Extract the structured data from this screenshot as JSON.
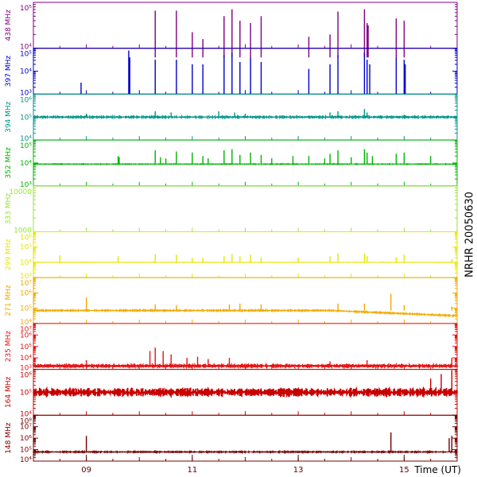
{
  "station": "NRHR 20050630",
  "time_axis": {
    "label": "Time (UT)",
    "ticks": [
      "09",
      "11",
      "13",
      "15"
    ],
    "range": [
      8.0,
      16.0
    ]
  },
  "chart_data": [
    {
      "type": "line",
      "series": [
        {
          "name": "438 MHz"
        }
      ],
      "color": "#7f007f",
      "ytick_labels": [
        "10⁵",
        "10⁴"
      ],
      "yexp": [
        5,
        4
      ],
      "ylog": true,
      "baseline_exp": 3.8,
      "noise": 0,
      "spikes": [
        [
          10.3,
          4.82
        ],
        [
          10.7,
          4.82
        ],
        [
          11.0,
          4.35
        ],
        [
          11.2,
          4.2
        ],
        [
          11.6,
          4.7
        ],
        [
          11.75,
          4.85
        ],
        [
          11.9,
          4.6
        ],
        [
          12.1,
          4.55
        ],
        [
          12.3,
          4.7
        ],
        [
          13.2,
          4.25
        ],
        [
          13.6,
          4.3
        ],
        [
          13.75,
          4.8
        ],
        [
          14.25,
          4.85
        ],
        [
          14.3,
          4.55
        ],
        [
          14.32,
          4.5
        ],
        [
          14.85,
          4.65
        ],
        [
          15.0,
          4.6
        ]
      ]
    },
    {
      "type": "line",
      "series": [
        {
          "name": "397 MHz"
        }
      ],
      "color": "#0000c8",
      "ytick_labels": [
        "10⁵",
        "10⁴",
        "10³"
      ],
      "yexp": [
        5,
        4,
        3
      ],
      "ylog": true,
      "baseline_exp": 3.0,
      "noise": 0,
      "spikes": [
        [
          8.9,
          3.5
        ],
        [
          9.8,
          4.9
        ],
        [
          9.82,
          4.6
        ],
        [
          10.3,
          4.5
        ],
        [
          10.7,
          4.5
        ],
        [
          11.0,
          4.3
        ],
        [
          11.2,
          4.3
        ],
        [
          11.6,
          4.7
        ],
        [
          11.75,
          4.8
        ],
        [
          11.9,
          4.4
        ],
        [
          12.1,
          4.6
        ],
        [
          12.3,
          4.4
        ],
        [
          13.2,
          4.1
        ],
        [
          13.6,
          4.3
        ],
        [
          13.75,
          4.7
        ],
        [
          14.25,
          4.8
        ],
        [
          14.3,
          4.5
        ],
        [
          14.35,
          4.3
        ],
        [
          14.85,
          4.6
        ],
        [
          15.0,
          4.5
        ],
        [
          15.02,
          4.3
        ]
      ]
    },
    {
      "type": "line",
      "series": [
        {
          "name": "394 MHz"
        }
      ],
      "color": "#009688",
      "ytick_labels": [
        "10⁶",
        "10⁵",
        "10⁴"
      ],
      "yexp": [
        6,
        5,
        4
      ],
      "ylog": true,
      "baseline_exp": 5.0,
      "noise": 0.06,
      "spikes": [
        [
          9.0,
          5.15
        ],
        [
          10.3,
          5.25
        ],
        [
          10.6,
          5.2
        ],
        [
          11.5,
          5.25
        ],
        [
          11.8,
          5.2
        ],
        [
          12.0,
          5.15
        ],
        [
          13.6,
          5.2
        ],
        [
          13.75,
          5.25
        ],
        [
          14.25,
          5.35
        ],
        [
          14.3,
          5.2
        ],
        [
          15.0,
          5.1
        ]
      ]
    },
    {
      "type": "line",
      "series": [
        {
          "name": "352 MHz"
        }
      ],
      "color": "#00b400",
      "ytick_labels": [
        "10⁵",
        "10⁴",
        "10³"
      ],
      "yexp": [
        5,
        4,
        3
      ],
      "ylog": true,
      "baseline_exp": 3.95,
      "noise": 0.02,
      "spikes": [
        [
          9.6,
          4.3
        ],
        [
          9.62,
          4.25
        ],
        [
          10.3,
          4.55
        ],
        [
          10.7,
          4.5
        ],
        [
          10.4,
          4.25
        ],
        [
          10.5,
          4.2
        ],
        [
          11.0,
          4.45
        ],
        [
          11.2,
          4.3
        ],
        [
          11.3,
          4.2
        ],
        [
          11.6,
          4.55
        ],
        [
          11.75,
          4.6
        ],
        [
          11.9,
          4.35
        ],
        [
          12.1,
          4.45
        ],
        [
          12.3,
          4.35
        ],
        [
          12.5,
          4.2
        ],
        [
          12.9,
          4.3
        ],
        [
          13.2,
          4.3
        ],
        [
          13.5,
          4.2
        ],
        [
          13.6,
          4.4
        ],
        [
          13.75,
          4.55
        ],
        [
          14.0,
          4.25
        ],
        [
          14.25,
          4.6
        ],
        [
          14.3,
          4.45
        ],
        [
          14.4,
          4.3
        ],
        [
          14.85,
          4.4
        ],
        [
          15.0,
          4.45
        ],
        [
          15.5,
          4.3
        ]
      ]
    },
    {
      "type": "line",
      "series": [
        {
          "name": "333 MHz"
        }
      ],
      "color": "#96e632",
      "ytick_labels": [
        "10000",
        "1000"
      ],
      "yexp": [
        4,
        3
      ],
      "ylog": true,
      "baseline_exp": null,
      "noise": 0,
      "spikes": []
    },
    {
      "type": "line",
      "series": [
        {
          "name": "299 MHz"
        }
      ],
      "color": "#e6e600",
      "ytick_labels": [
        "10⁶",
        "10⁵",
        "10⁴",
        "10³"
      ],
      "yexp": [
        6,
        5,
        4,
        3
      ],
      "ylog": true,
      "baseline_exp": 4.0,
      "noise": 0.01,
      "spikes": [
        [
          8.5,
          4.45
        ],
        [
          9.6,
          4.4
        ],
        [
          10.3,
          4.55
        ],
        [
          10.7,
          4.5
        ],
        [
          11.0,
          4.3
        ],
        [
          11.2,
          4.3
        ],
        [
          11.6,
          4.4
        ],
        [
          11.75,
          4.55
        ],
        [
          11.9,
          4.4
        ],
        [
          12.1,
          4.5
        ],
        [
          12.3,
          4.35
        ],
        [
          13.0,
          4.3
        ],
        [
          13.6,
          4.4
        ],
        [
          13.75,
          4.6
        ],
        [
          14.25,
          4.55
        ],
        [
          14.3,
          4.4
        ],
        [
          14.85,
          4.35
        ],
        [
          15.0,
          4.5
        ],
        [
          15.9,
          4.2
        ]
      ]
    },
    {
      "type": "line",
      "series": [
        {
          "name": "271 MHz"
        }
      ],
      "color": "#f0aa00",
      "ytick_labels": [
        "10⁷",
        "10⁶",
        "10⁵",
        "10⁴"
      ],
      "yexp": [
        7,
        6,
        5,
        4
      ],
      "ylog": true,
      "baseline_exp": 4.85,
      "baseline_end_exp": 4.5,
      "noise": 0.07,
      "spikes": [
        [
          9.0,
          5.7
        ],
        [
          10.3,
          5.25
        ],
        [
          10.7,
          5.2
        ],
        [
          11.7,
          5.25
        ],
        [
          11.9,
          5.3
        ],
        [
          12.3,
          5.25
        ],
        [
          13.75,
          5.3
        ],
        [
          14.25,
          5.3
        ],
        [
          14.75,
          5.95
        ],
        [
          15.0,
          5.2
        ],
        [
          15.9,
          5.1
        ]
      ]
    },
    {
      "type": "line",
      "series": [
        {
          "name": "235 MHz"
        }
      ],
      "color": "#e61414",
      "ytick_labels": [
        "10⁷",
        "10⁶",
        "10⁵",
        "10⁴",
        "10³"
      ],
      "yexp": [
        7,
        6,
        5,
        4,
        3
      ],
      "ylog": true,
      "baseline_exp": 3.3,
      "noise": 0.12,
      "spikes": [
        [
          9.0,
          3.8
        ],
        [
          10.2,
          4.6
        ],
        [
          10.3,
          4.9
        ],
        [
          10.45,
          4.6
        ],
        [
          10.6,
          4.3
        ],
        [
          10.9,
          4.0
        ],
        [
          11.1,
          4.1
        ],
        [
          11.3,
          3.9
        ],
        [
          11.7,
          4.0
        ],
        [
          13.6,
          3.7
        ],
        [
          14.3,
          3.8
        ],
        [
          15.9,
          4.0
        ]
      ]
    },
    {
      "type": "line",
      "series": [
        {
          "name": "164 MHz"
        }
      ],
      "color": "#c80000",
      "ytick_labels": [
        "10⁶",
        "10⁵",
        "10⁴"
      ],
      "yexp": [
        6,
        5,
        4
      ],
      "ylog": true,
      "baseline_exp": 5.0,
      "noise": 0.18,
      "spikes": [
        [
          15.5,
          5.6
        ],
        [
          15.7,
          5.8
        ],
        [
          15.9,
          6.0
        ]
      ]
    },
    {
      "type": "line",
      "series": [
        {
          "name": "148 MHz"
        }
      ],
      "color": "#780000",
      "ytick_labels": [
        "10⁸",
        "10⁷",
        "10⁶",
        "10⁵",
        "10⁴"
      ],
      "yexp": [
        8,
        7,
        6,
        5,
        4
      ],
      "ylog": true,
      "baseline_exp": 4.8,
      "noise": 0.08,
      "spikes": [
        [
          9.0,
          6.2
        ],
        [
          14.75,
          6.5
        ],
        [
          15.85,
          6.0
        ],
        [
          15.9,
          6.2
        ]
      ]
    }
  ]
}
